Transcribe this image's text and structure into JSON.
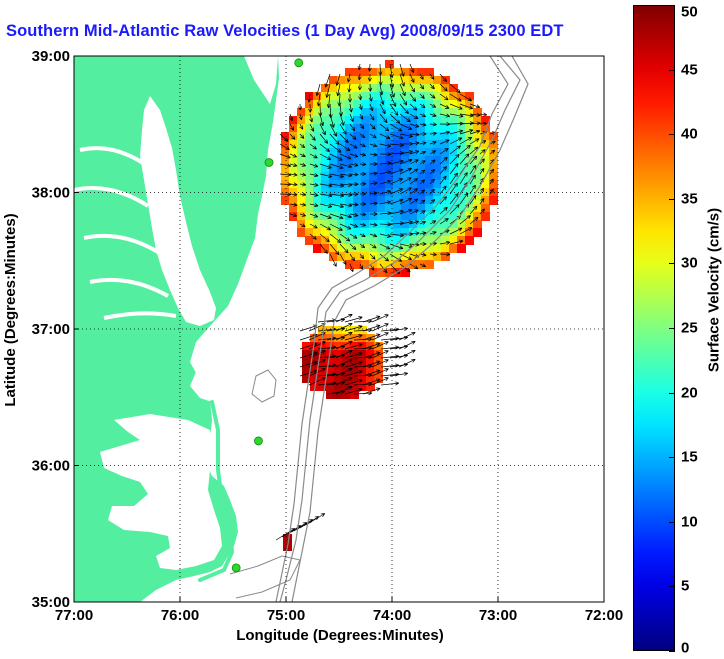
{
  "title": "Southern Mid-Atlantic Raw Velocities (1 Day Avg) 2008/09/15 2300 EDT",
  "map": {
    "xlabel": "Longitude (Degrees:Minutes)",
    "ylabel": "Latitude (Degrees:Minutes)",
    "x_ticks": [
      "77:00",
      "76:00",
      "75:00",
      "74:00",
      "73:00",
      "72:00"
    ],
    "y_ticks": [
      "39:00",
      "38:00",
      "37:00",
      "36:00",
      "35:00"
    ],
    "lon_range": [
      -77,
      -72
    ],
    "lat_range": [
      35,
      39
    ],
    "land_color": "#53eea0",
    "coast_color": "#ffffff",
    "bathymetry_color": "#8a8a8a",
    "grid": "dotted",
    "station_color": "#2bd82b",
    "stations": [
      {
        "lon": -74.88,
        "lat": 38.95
      },
      {
        "lon": -75.16,
        "lat": 38.22
      },
      {
        "lon": -75.26,
        "lat": 36.18
      },
      {
        "lon": -75.47,
        "lat": 35.25
      }
    ]
  },
  "colorbar": {
    "label": "Surface Velocity (cm/s)",
    "ticks": [
      "0",
      "5",
      "10",
      "15",
      "20",
      "25",
      "30",
      "35",
      "40",
      "45",
      "50"
    ],
    "range": [
      0,
      50
    ],
    "colormap": "jet"
  }
}
